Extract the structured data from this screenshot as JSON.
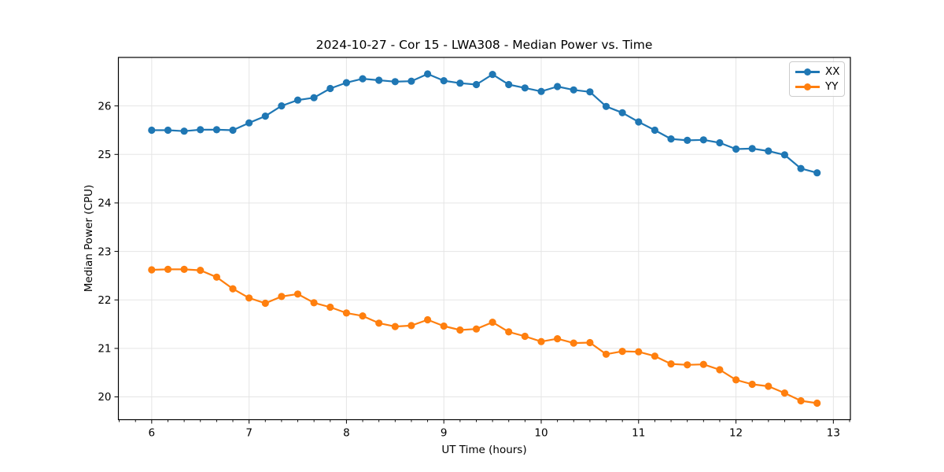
{
  "figure": {
    "title": "2024-10-27 - Cor 15 - LWA308 - Median Power vs. Time",
    "background": "#ffffff",
    "text_color": "#000000",
    "grid_color": "#e5e5e5",
    "spine_color": "#000000"
  },
  "chart_data": {
    "type": "line",
    "title": "2024-10-27 - Cor 15 - LWA308 - Median Power vs. Time",
    "xlabel": "UT Time (hours)",
    "ylabel": "Median Power (CPU)",
    "xlim": [
      5.658,
      13.175
    ],
    "ylim": [
      19.53,
      27.0
    ],
    "x_ticks": [
      6,
      7,
      8,
      9,
      10,
      11,
      12,
      13
    ],
    "y_ticks": [
      20,
      21,
      22,
      23,
      24,
      25,
      26
    ],
    "x_minor_tick_step": 0.16667,
    "grid": true,
    "legend_position": "upper right",
    "marker": "circle",
    "x": [
      6.0,
      6.1667,
      6.3333,
      6.5,
      6.6667,
      6.8333,
      7.0,
      7.1667,
      7.3333,
      7.5,
      7.6667,
      7.8333,
      8.0,
      8.1667,
      8.3333,
      8.5,
      8.6667,
      8.8333,
      9.0,
      9.1667,
      9.3333,
      9.5,
      9.6667,
      9.8333,
      10.0,
      10.1667,
      10.3333,
      10.5,
      10.6667,
      10.8333,
      11.0,
      11.1667,
      11.3333,
      11.5,
      11.6667,
      11.8333,
      12.0,
      12.1667,
      12.3333,
      12.5,
      12.6667,
      12.8333
    ],
    "series": [
      {
        "name": "XX",
        "color": "#1f77b4",
        "values": [
          25.5,
          25.5,
          25.48,
          25.51,
          25.51,
          25.5,
          25.65,
          25.79,
          26.0,
          26.12,
          26.17,
          26.36,
          26.48,
          26.56,
          26.53,
          26.5,
          26.51,
          26.66,
          26.52,
          26.47,
          26.44,
          26.65,
          26.44,
          26.37,
          26.3,
          26.4,
          26.33,
          26.29,
          25.99,
          25.86,
          25.67,
          25.5,
          25.32,
          25.29,
          25.3,
          25.24,
          25.11,
          25.12,
          25.07,
          24.99,
          24.71,
          24.62
        ]
      },
      {
        "name": "YY",
        "color": "#ff7f0e",
        "values": [
          22.62,
          22.63,
          22.63,
          22.61,
          22.47,
          22.23,
          22.04,
          21.93,
          22.07,
          22.12,
          21.94,
          21.85,
          21.73,
          21.67,
          21.52,
          21.45,
          21.47,
          21.59,
          21.46,
          21.38,
          21.4,
          21.54,
          21.34,
          21.25,
          21.14,
          21.2,
          21.11,
          21.12,
          20.88,
          20.94,
          20.93,
          20.84,
          20.68,
          20.66,
          20.67,
          20.56,
          20.35,
          20.26,
          20.22,
          20.08,
          19.92,
          19.87
        ]
      }
    ]
  }
}
